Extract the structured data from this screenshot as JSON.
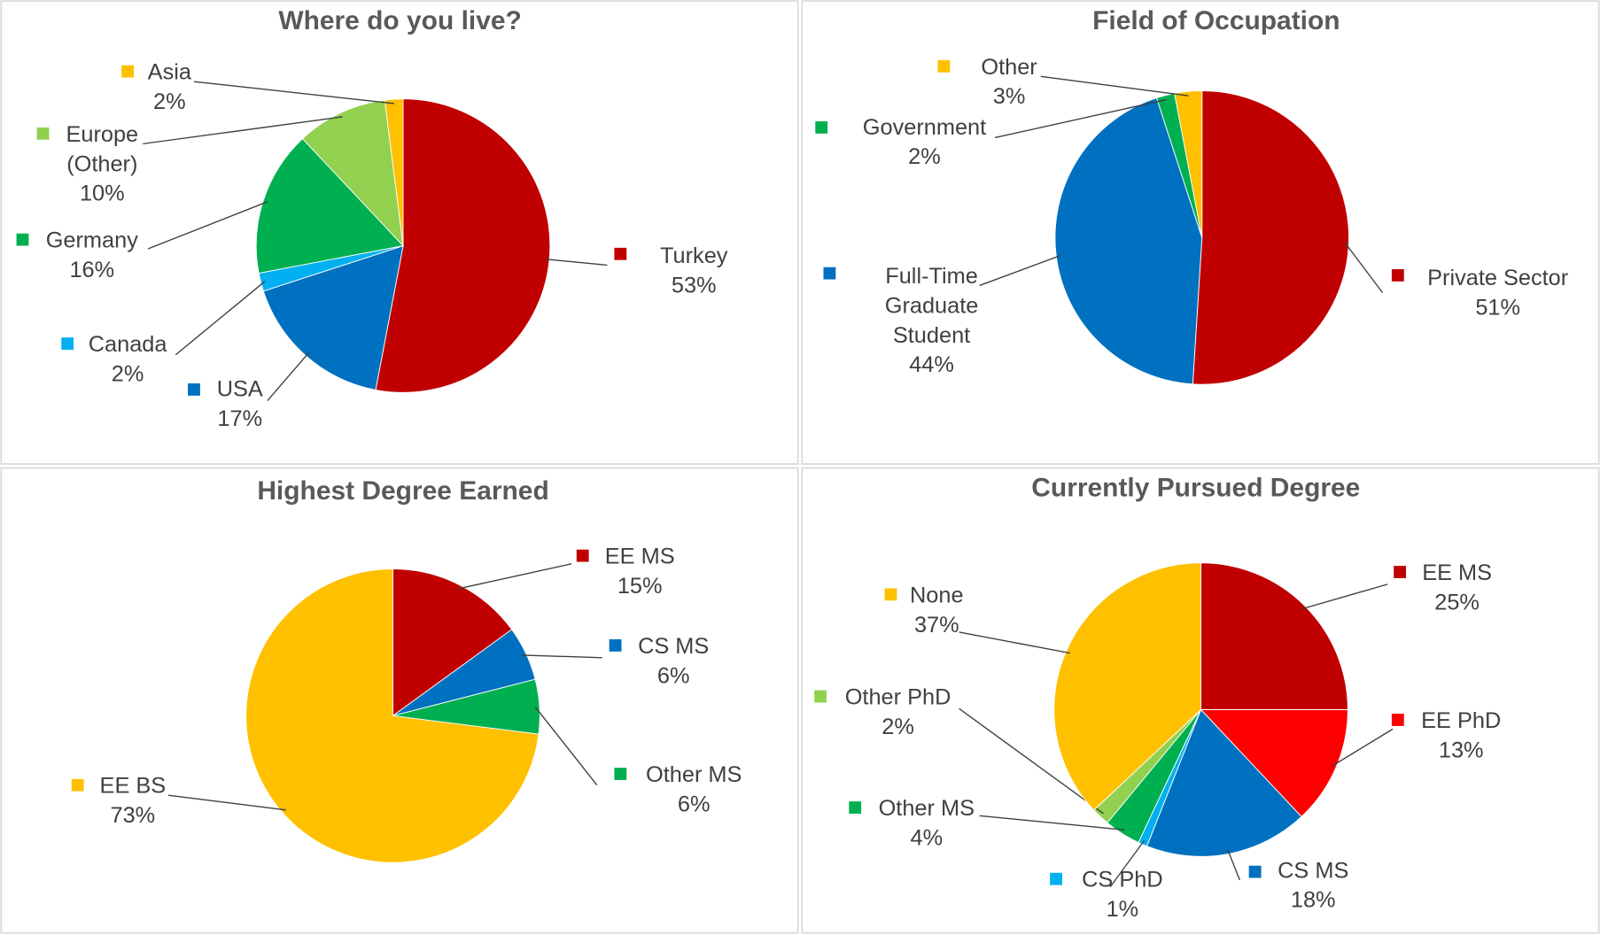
{
  "chart_data": [
    {
      "type": "pie",
      "title": "Where do you live?",
      "categories": [
        "Turkey",
        "USA",
        "Canada",
        "Germany",
        "Europe (Other)",
        "Asia"
      ],
      "values": [
        53,
        17,
        2,
        16,
        10,
        2
      ],
      "value_labels": [
        "53%",
        "17%",
        "2%",
        "16%",
        "10%",
        "2%"
      ],
      "colors": [
        "#c00000",
        "#0070c0",
        "#00b0f0",
        "#00b050",
        "#92d050",
        "#ffc000"
      ]
    },
    {
      "type": "pie",
      "title": "Field of Occupation",
      "categories": [
        "Private Sector",
        "Full-Time Graduate Student",
        "Government",
        "Other"
      ],
      "values": [
        51,
        44,
        2,
        3
      ],
      "value_labels": [
        "51%",
        "44%",
        "2%",
        "3%"
      ],
      "colors": [
        "#c00000",
        "#0070c0",
        "#00b050",
        "#ffc000"
      ]
    },
    {
      "type": "pie",
      "title": "Highest Degree Earned",
      "categories": [
        "EE MS",
        "CS MS",
        "Other MS",
        "EE BS"
      ],
      "values": [
        15,
        6,
        6,
        73
      ],
      "value_labels": [
        "15%",
        "6%",
        "6%",
        "73%"
      ],
      "colors": [
        "#c00000",
        "#0070c0",
        "#00b050",
        "#ffc000"
      ]
    },
    {
      "type": "pie",
      "title": "Currently Pursued Degree",
      "categories": [
        "EE MS",
        "EE PhD",
        "CS MS",
        "CS PhD",
        "Other MS",
        "Other PhD",
        "None"
      ],
      "values": [
        25,
        13,
        18,
        1,
        4,
        2,
        37
      ],
      "value_labels": [
        "25%",
        "13%",
        "18%",
        "1%",
        "4%",
        "2%",
        "37%"
      ],
      "colors": [
        "#c00000",
        "#ff0000",
        "#0070c0",
        "#00b0f0",
        "#00b050",
        "#92d050",
        "#ffc000"
      ]
    }
  ]
}
